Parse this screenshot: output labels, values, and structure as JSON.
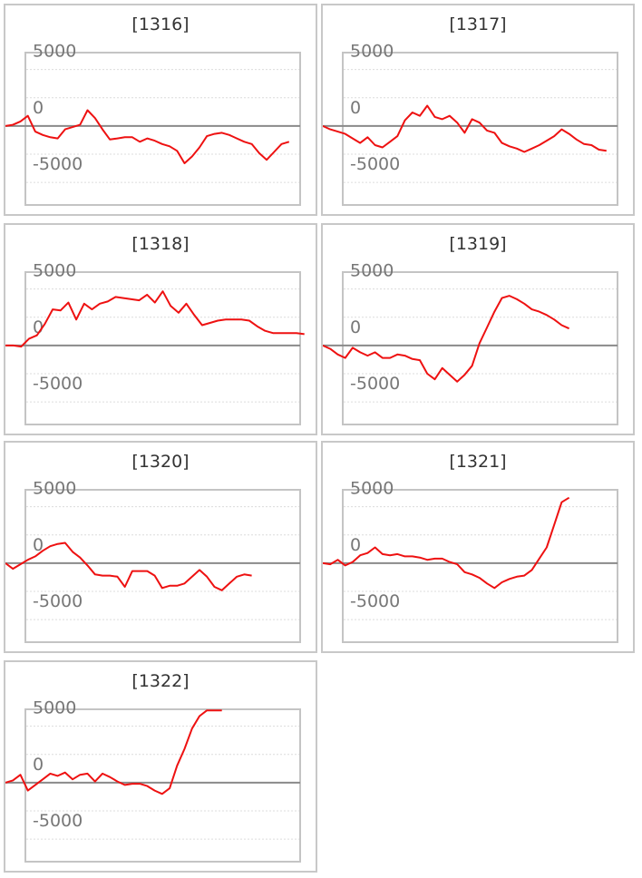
{
  "chart_data": [
    {
      "type": "line",
      "title": "[1316]",
      "y_ticks": [
        "5000",
        "0",
        "-5000"
      ],
      "ylim": [
        -7000,
        6500
      ],
      "grid": true,
      "series": [
        {
          "color": "#ee1111",
          "values": [
            -1,
            100,
            400,
            900,
            -500,
            -800,
            -1000,
            -1100,
            -300,
            -100,
            100,
            1400,
            700,
            -300,
            -1200,
            -1100,
            -1000,
            -1000,
            -1400,
            -1100,
            -1300,
            -1600,
            -1800,
            -2200,
            -3300,
            -2700,
            -1900,
            -900,
            -700,
            -600,
            -800,
            -1100,
            -1400,
            -1600,
            -2400,
            -3000,
            -2300,
            -1600,
            -1400
          ]
        }
      ],
      "x_count": 40
    },
    {
      "type": "line",
      "title": "[1317]",
      "y_ticks": [
        "5000",
        "0",
        "-5000"
      ],
      "ylim": [
        -7000,
        6500
      ],
      "grid": true,
      "series": [
        {
          "color": "#ee1111",
          "values": [
            0,
            -300,
            -500,
            -700,
            -1100,
            -1500,
            -1000,
            -1700,
            -1900,
            -1400,
            -900,
            500,
            1200,
            900,
            1800,
            800,
            600,
            900,
            300,
            -600,
            600,
            300,
            -400,
            -600,
            -1500,
            -1800,
            -2000,
            -2300,
            -2000,
            -1700,
            -1300,
            -900,
            -300,
            -700,
            -1200,
            -1600,
            -1700,
            -2100,
            -2200
          ]
        }
      ],
      "x_count": 40
    },
    {
      "type": "line",
      "title": "[1318]",
      "y_ticks": [
        "5000",
        "0",
        "-5000"
      ],
      "ylim": [
        -7000,
        6500
      ],
      "grid": true,
      "series": [
        {
          "color": "#ee1111",
          "values": [
            0,
            0,
            -100,
            600,
            900,
            1900,
            3200,
            3100,
            3800,
            2300,
            3700,
            3200,
            3700,
            3900,
            4300,
            4200,
            4100,
            4000,
            4500,
            3800,
            4800,
            3500,
            2900,
            3700,
            2700,
            1800,
            2000,
            2200,
            2300,
            2300,
            2300,
            2200,
            1700,
            1300,
            1100,
            1100,
            1100,
            1100,
            1000
          ]
        }
      ],
      "x_count": 38
    },
    {
      "type": "line",
      "title": "[1319]",
      "y_ticks": [
        "5000",
        "0",
        "-5000"
      ],
      "ylim": [
        -7000,
        6500
      ],
      "grid": true,
      "series": [
        {
          "color": "#ee1111",
          "values": [
            0,
            -300,
            -800,
            -1100,
            -200,
            -600,
            -900,
            -600,
            -1100,
            -1100,
            -800,
            -900,
            -1200,
            -1300,
            -2500,
            -3000,
            -2000,
            -2600,
            -3200,
            -2600,
            -1800,
            200,
            1600,
            3000,
            4200,
            4400,
            4100,
            3700,
            3200,
            3000,
            2700,
            2300,
            1800,
            1500
          ]
        }
      ],
      "x_count": 40
    },
    {
      "type": "line",
      "title": "[1320]",
      "y_ticks": [
        "5000",
        "0",
        "-5000"
      ],
      "ylim": [
        -7000,
        6500
      ],
      "grid": true,
      "series": [
        {
          "color": "#ee1111",
          "values": [
            0,
            -500,
            -100,
            300,
            600,
            1100,
            1500,
            1700,
            1800,
            1000,
            500,
            -200,
            -1000,
            -1100,
            -1100,
            -1200,
            -2100,
            -700,
            -700,
            -700,
            -1100,
            -2200,
            -2000,
            -2000,
            -1800,
            -1200,
            -600,
            -1200,
            -2100,
            -2400,
            -1800,
            -1200,
            -1000,
            -1100
          ]
        }
      ],
      "x_count": 40
    },
    {
      "type": "line",
      "title": "[1321]",
      "y_ticks": [
        "5000",
        "0",
        "-5000"
      ],
      "ylim": [
        -7000,
        6500
      ],
      "grid": true,
      "series": [
        {
          "color": "#ee1111",
          "values": [
            0,
            -100,
            300,
            -200,
            100,
            700,
            900,
            1400,
            800,
            700,
            800,
            600,
            600,
            500,
            300,
            400,
            400,
            100,
            -100,
            -800,
            -1000,
            -1300,
            -1800,
            -2200,
            -1700,
            -1400,
            -1200,
            -1100,
            -600,
            400,
            1400,
            3400,
            5400,
            5800
          ]
        }
      ],
      "x_count": 40
    },
    {
      "type": "line",
      "title": "[1322]",
      "y_ticks": [
        "5000",
        "0",
        "-5000"
      ],
      "ylim": [
        -7000,
        6500
      ],
      "grid": true,
      "series": [
        {
          "color": "#ee1111",
          "values": [
            0,
            200,
            700,
            -700,
            -200,
            300,
            800,
            600,
            900,
            300,
            700,
            800,
            100,
            800,
            500,
            100,
            -200,
            -100,
            -100,
            -300,
            -700,
            -1000,
            -500,
            1500,
            3000,
            4800,
            5900,
            6400,
            6400,
            6400
          ]
        }
      ],
      "x_count": 40
    }
  ]
}
